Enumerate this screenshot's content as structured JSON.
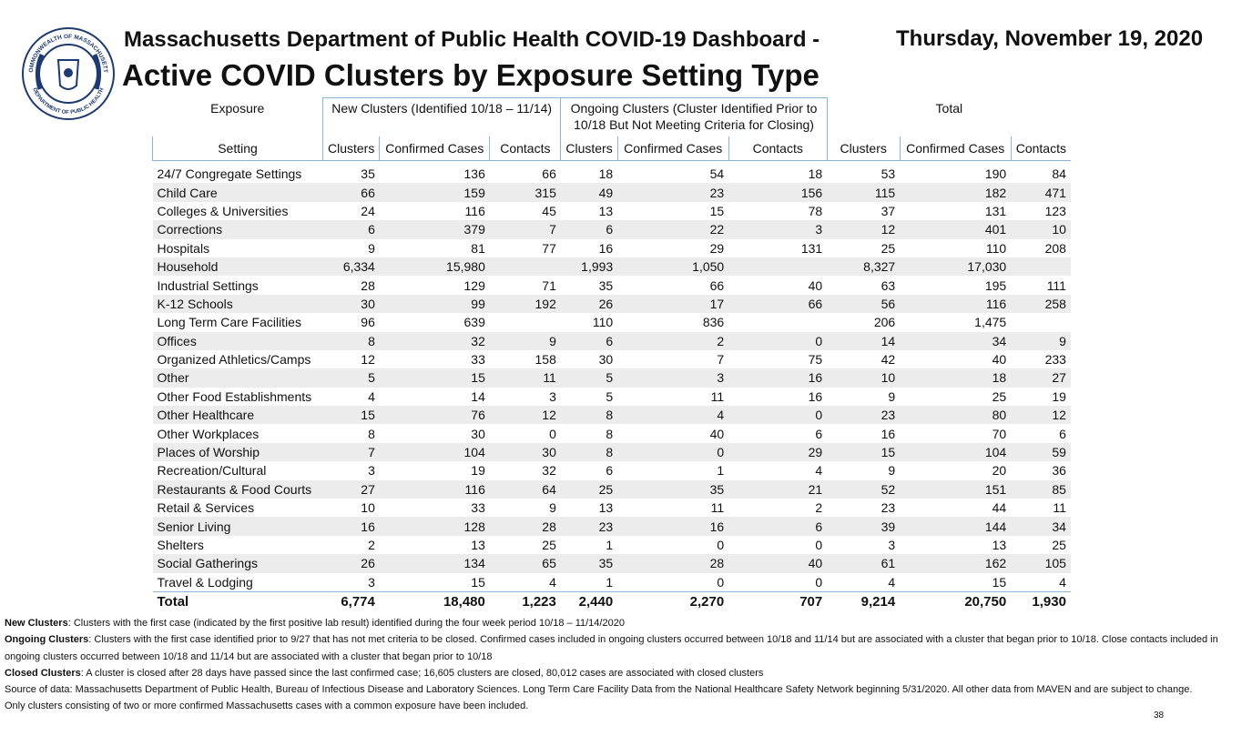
{
  "logo": {
    "top": "COMMONWEALTH OF MASSACHUSETTS",
    "bottom": "DEPARTMENT OF PUBLIC HEALTH"
  },
  "header": {
    "title": "Massachusetts Department of Public Health COVID-19 Dashboard -",
    "date": "Thursday, November 19, 2020",
    "subtitle": "Active COVID Clusters by Exposure Setting Type"
  },
  "table": {
    "group_headers": [
      "Exposure",
      "New Clusters (Identified 10/18 – 11/14)",
      "Ongoing Clusters (Cluster Identified Prior to 10/18 But Not Meeting Criteria for Closing)",
      "Total"
    ],
    "columns": [
      "Setting",
      "Clusters",
      "Confirmed Cases",
      "Contacts",
      "Clusters",
      "Confirmed Cases",
      "Contacts",
      "Clusters",
      "Confirmed Cases",
      "Contacts"
    ],
    "rows": [
      [
        "24/7 Congregate Settings",
        35,
        136,
        66,
        18,
        54,
        18,
        53,
        190,
        84
      ],
      [
        "Child Care",
        66,
        159,
        315,
        49,
        23,
        156,
        115,
        182,
        471
      ],
      [
        "Colleges & Universities",
        24,
        116,
        45,
        13,
        15,
        78,
        37,
        131,
        123
      ],
      [
        "Corrections",
        6,
        379,
        7,
        6,
        22,
        3,
        12,
        401,
        10
      ],
      [
        "Hospitals",
        9,
        81,
        77,
        16,
        29,
        131,
        25,
        110,
        208
      ],
      [
        "Household",
        "6,334",
        "15,980",
        null,
        "1,993",
        "1,050",
        null,
        "8,327",
        "17,030",
        null
      ],
      [
        "Industrial Settings",
        28,
        129,
        71,
        35,
        66,
        40,
        63,
        195,
        111
      ],
      [
        "K-12 Schools",
        30,
        99,
        192,
        26,
        17,
        66,
        56,
        116,
        258
      ],
      [
        "Long Term Care Facilities",
        96,
        639,
        null,
        110,
        836,
        null,
        206,
        "1,475",
        null
      ],
      [
        "Offices",
        8,
        32,
        9,
        6,
        2,
        0,
        14,
        34,
        9
      ],
      [
        "Organized Athletics/Camps",
        12,
        33,
        158,
        30,
        7,
        75,
        42,
        40,
        233
      ],
      [
        "Other",
        5,
        15,
        11,
        5,
        3,
        16,
        10,
        18,
        27
      ],
      [
        "Other Food Establishments",
        4,
        14,
        3,
        5,
        11,
        16,
        9,
        25,
        19
      ],
      [
        "Other Healthcare",
        15,
        76,
        12,
        8,
        4,
        0,
        23,
        80,
        12
      ],
      [
        "Other Workplaces",
        8,
        30,
        0,
        8,
        40,
        6,
        16,
        70,
        6
      ],
      [
        "Places of Worship",
        7,
        104,
        30,
        8,
        0,
        29,
        15,
        104,
        59
      ],
      [
        "Recreation/Cultural",
        3,
        19,
        32,
        6,
        1,
        4,
        9,
        20,
        36
      ],
      [
        "Restaurants & Food Courts",
        27,
        116,
        64,
        25,
        35,
        21,
        52,
        151,
        85
      ],
      [
        "Retail & Services",
        10,
        33,
        9,
        13,
        11,
        2,
        23,
        44,
        11
      ],
      [
        "Senior Living",
        16,
        128,
        28,
        23,
        16,
        6,
        39,
        144,
        34
      ],
      [
        "Shelters",
        2,
        13,
        25,
        1,
        0,
        0,
        3,
        13,
        25
      ],
      [
        "Social Gatherings",
        26,
        134,
        65,
        35,
        28,
        40,
        61,
        162,
        105
      ],
      [
        "Travel & Lodging",
        3,
        15,
        4,
        1,
        0,
        0,
        4,
        15,
        4
      ]
    ],
    "total": [
      "Total",
      "6,774",
      "18,480",
      "1,223",
      "2,440",
      "2,270",
      707,
      "9,214",
      "20,750",
      "1,930"
    ]
  },
  "notes": [
    {
      "label": "New Clusters",
      "text": ": Clusters with the first case (indicated by the first positive lab result) identified during the four week period 10/18 – 11/14/2020"
    },
    {
      "label": "Ongoing Clusters",
      "text": ": Clusters with the first case identified prior to 9/27 that has not met criteria to be closed.  Confirmed cases included in ongoing clusters occurred between 10/18 and 11/14  but are associated with a cluster that began prior to 10/18. Close contacts included in ongoing clusters occurred between 10/18 and 11/14  but are associated with a cluster that began prior to 10/18"
    },
    {
      "label": "Closed Clusters",
      "text": ": A cluster is closed after 28 days have passed since the last confirmed case; 16,605 clusters are closed, 80,012 cases are associated with closed clusters"
    },
    {
      "label": null,
      "text": "Source of data: Massachusetts Department of Public Health, Bureau of Infectious Disease and Laboratory Sciences. Long Term Care Facility Data from the National Healthcare Safety Network beginning 5/31/2020.  All other data from MAVEN and are subject to change."
    },
    {
      "label": null,
      "text": "Only clusters consisting of two or more confirmed Massachusetts cases with a common exposure have been included."
    }
  ],
  "page_number": "38"
}
